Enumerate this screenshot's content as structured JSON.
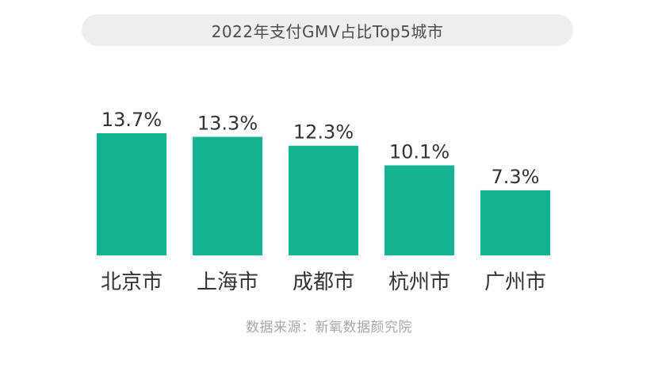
{
  "title": "2022年支付GMV占比Top5城市",
  "source": "数据来源：新氧数据颜究院",
  "colors": {
    "bar": "#14b492",
    "label": "#333333",
    "category": "#333333",
    "title_bg": "#eeeeee",
    "source": "#a8a8a8"
  },
  "chart_data": {
    "type": "bar",
    "title": "2022年支付GMV占比Top5城市",
    "categories": [
      "北京市",
      "上海市",
      "成都市",
      "杭州市",
      "广州市"
    ],
    "values": [
      13.7,
      13.3,
      12.3,
      10.1,
      7.3
    ],
    "value_labels": [
      "13.7%",
      "13.3%",
      "12.3%",
      "10.1%",
      "7.3%"
    ],
    "xlabel": "",
    "ylabel": "",
    "unit": "%",
    "ylim": [
      0,
      13.7
    ],
    "grid": false,
    "legend": "none"
  }
}
